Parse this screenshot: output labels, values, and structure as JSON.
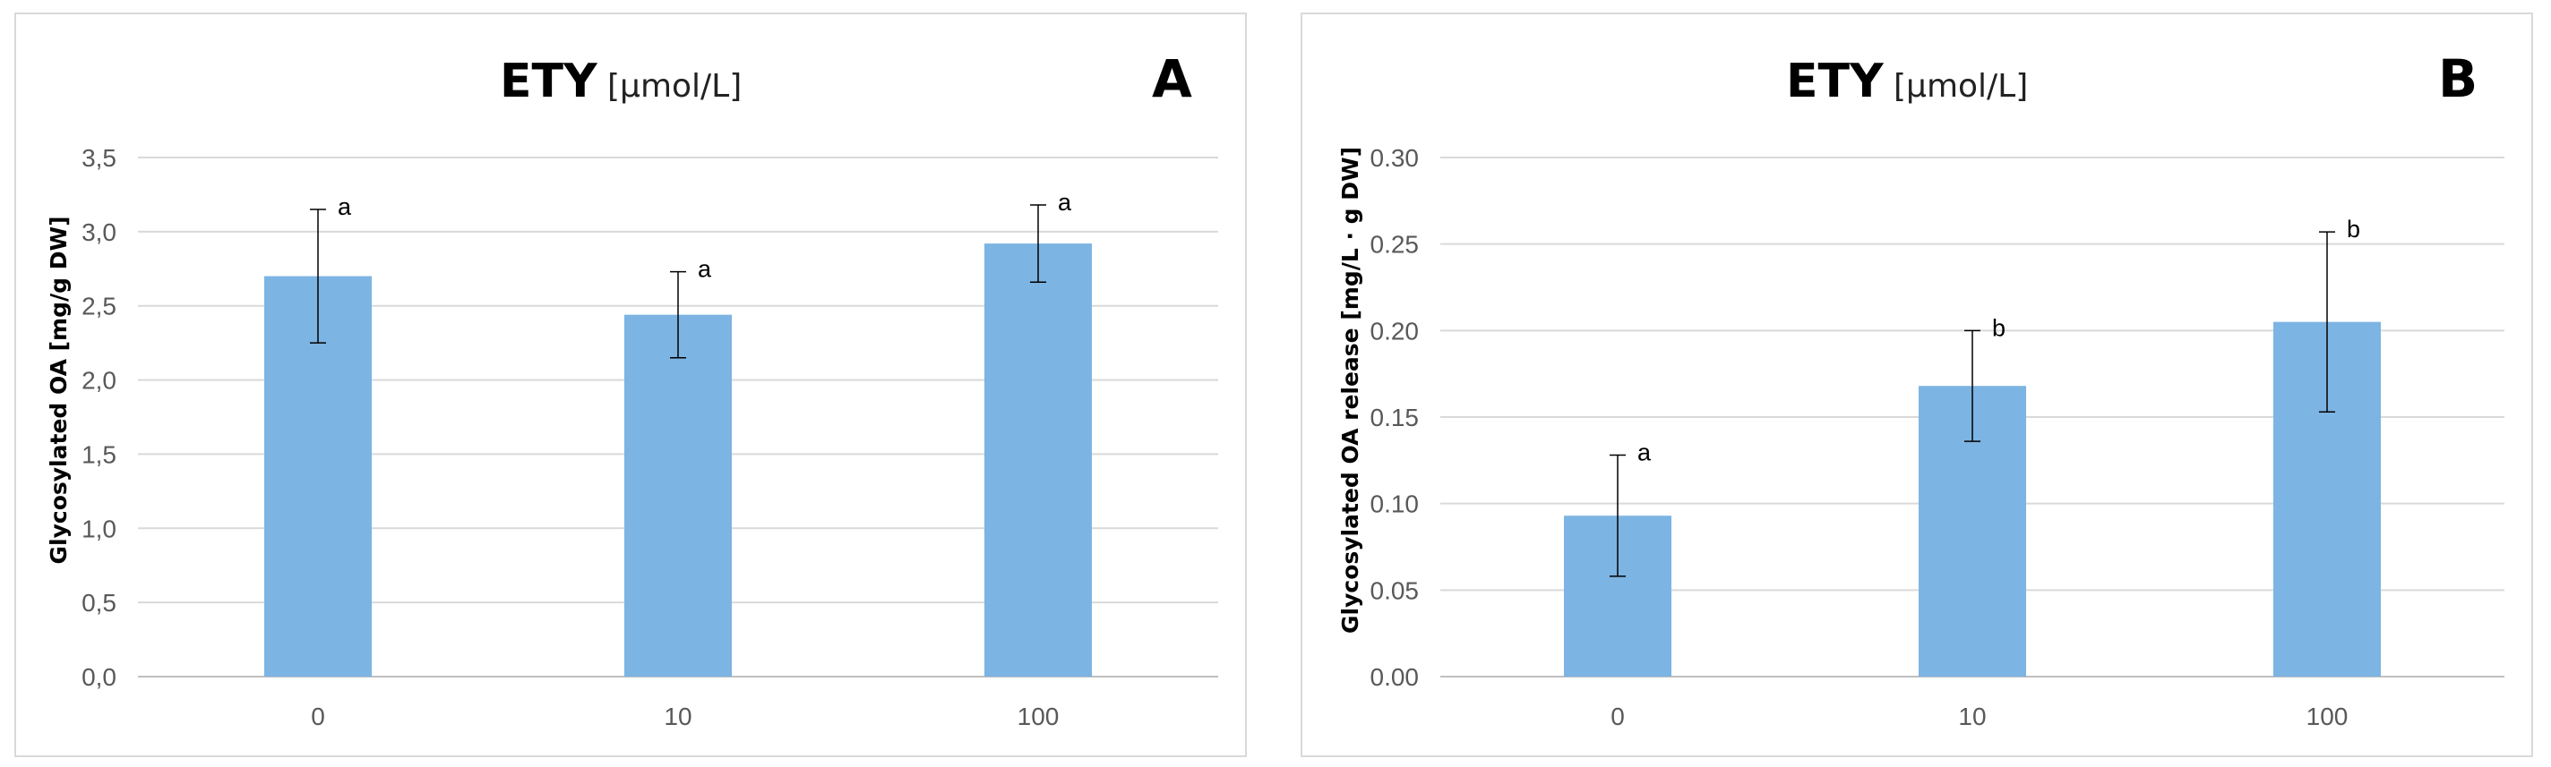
{
  "chart_data": [
    {
      "type": "bar",
      "panel": "A",
      "title": "ETY",
      "title_unit": "[μmol/L]",
      "xlabel": "",
      "ylabel": "Glycosylated OA [mg/g DW]",
      "categories": [
        "0",
        "10",
        "100"
      ],
      "values": [
        2.7,
        2.44,
        2.92
      ],
      "errors": [
        0.45,
        0.29,
        0.26
      ],
      "significance": [
        "a",
        "a",
        "a"
      ],
      "ylim": [
        0,
        3.5
      ],
      "yticks": [
        "0,0",
        "0,5",
        "1,0",
        "1,5",
        "2,0",
        "2,5",
        "3,0",
        "3,5"
      ],
      "ytick_step": 0.5,
      "grid": true,
      "bar_color": "#7cb4e3"
    },
    {
      "type": "bar",
      "panel": "B",
      "title": "ETY",
      "title_unit": "[μmol/L]",
      "xlabel": "",
      "ylabel": "Glycosylated OA release [mg/L · g DW]",
      "categories": [
        "0",
        "10",
        "100"
      ],
      "values": [
        0.093,
        0.168,
        0.205
      ],
      "errors": [
        0.035,
        0.032,
        0.052
      ],
      "significance": [
        "a",
        "b",
        "b"
      ],
      "ylim": [
        0,
        0.3
      ],
      "yticks": [
        "0.00",
        "0.05",
        "0.10",
        "0.15",
        "0.20",
        "0.25",
        "0.30"
      ],
      "ytick_step": 0.05,
      "grid": true,
      "bar_color": "#7cb4e3"
    }
  ]
}
